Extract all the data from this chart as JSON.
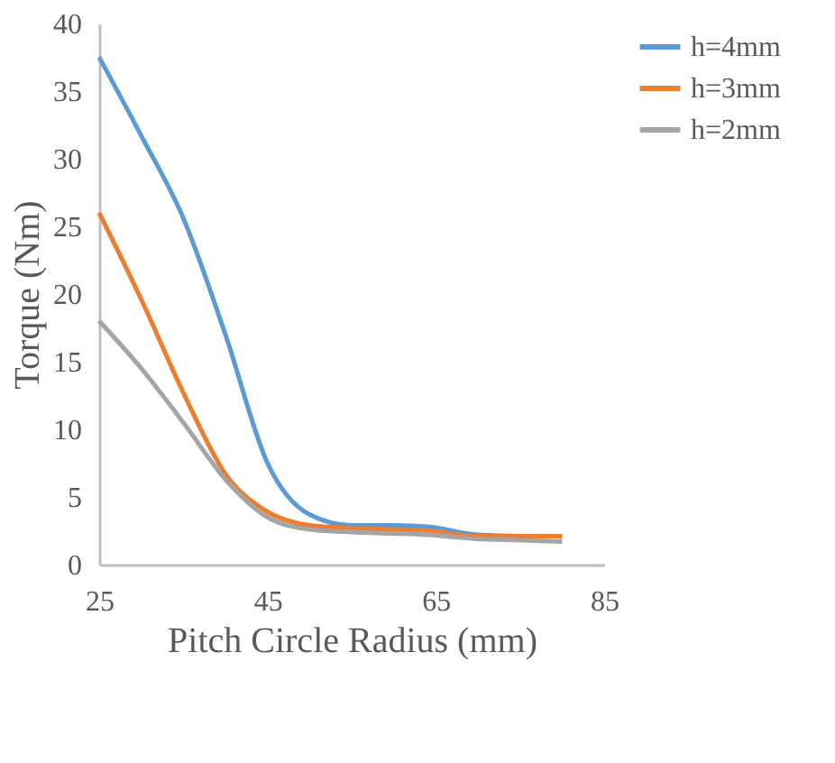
{
  "chart_data": {
    "type": "line",
    "xlabel": "Pitch Circle Radius (mm)",
    "ylabel": "Torque (Nm)",
    "x": [
      25,
      30,
      35,
      40,
      45,
      50,
      55,
      60,
      64,
      70,
      75,
      80
    ],
    "series": [
      {
        "name": "h=4mm",
        "color": "#5b9bd5",
        "values": [
          37.5,
          31.7,
          25.6,
          17,
          7.5,
          3.7,
          2.9,
          2.9,
          2.8,
          2.2,
          2.1,
          2.1
        ]
      },
      {
        "name": "h=3mm",
        "color": "#ed7d31",
        "values": [
          26,
          19.6,
          12.7,
          6.7,
          3.9,
          2.9,
          2.7,
          2.6,
          2.5,
          2.1,
          2.1,
          2.1
        ]
      },
      {
        "name": "h=2mm",
        "color": "#a5a5a5",
        "values": [
          18,
          14.5,
          10.5,
          6.3,
          3.5,
          2.6,
          2.4,
          2.3,
          2.2,
          1.9,
          1.8,
          1.7
        ]
      }
    ],
    "xlim": [
      25,
      85
    ],
    "xticks": [
      25,
      45,
      65,
      85
    ],
    "ylim": [
      0,
      40
    ],
    "yticks": [
      0,
      5,
      10,
      15,
      20,
      25,
      30,
      35,
      40
    ],
    "grid": false,
    "legend": "right",
    "marker": "none",
    "line_style": "solid"
  }
}
